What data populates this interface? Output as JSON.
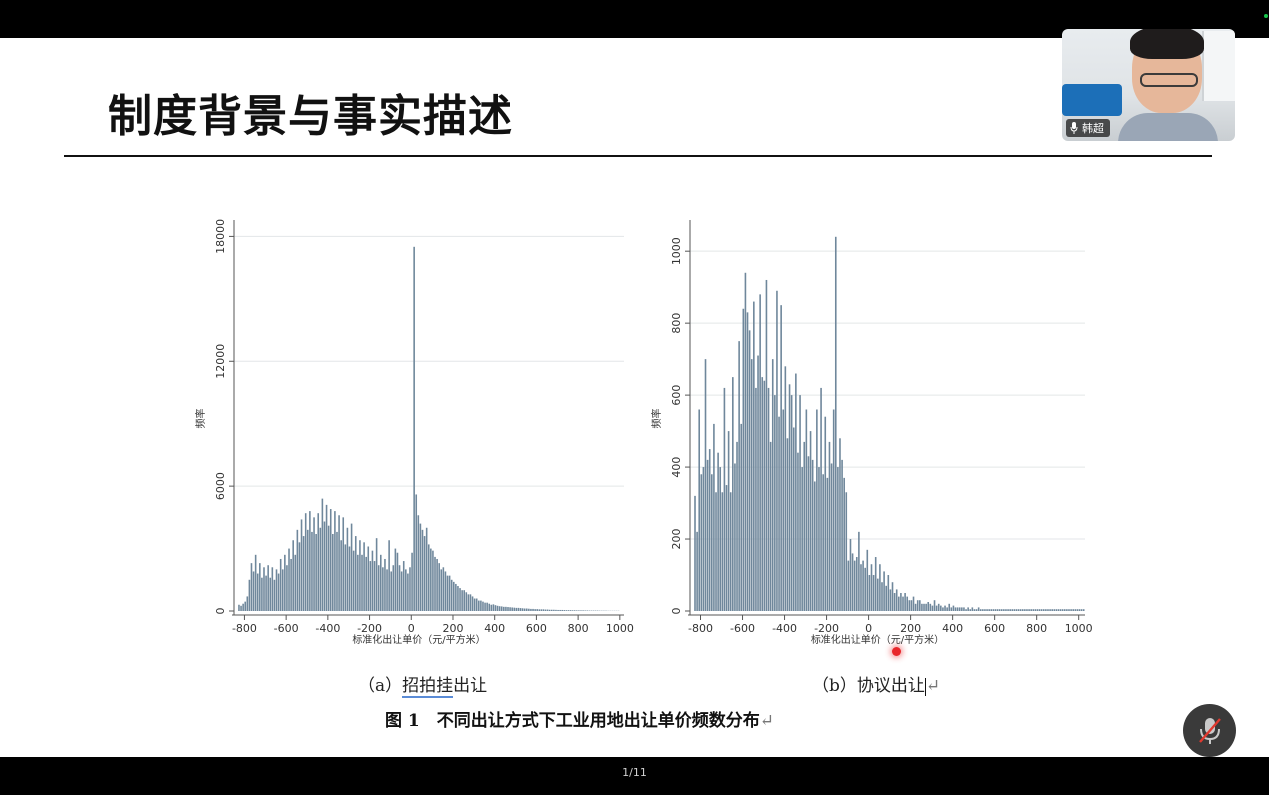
{
  "slide": {
    "title": "制度背景与事实描述",
    "caption_a": {
      "prefix": "（a）",
      "underlined": "招拍挂",
      "rest": "出让"
    },
    "caption_b": {
      "prefix": "（b）",
      "text": "协议出让"
    },
    "figure_caption": "图 1　不同出让方式下工业用地出让单价频数分布",
    "return_mark": "↵"
  },
  "video": {
    "participant_name": "韩超"
  },
  "footer": {
    "page_indicator": "1/11"
  },
  "colors": {
    "bar": "#6f879b",
    "grid": "#e3e6e8",
    "axis": "#555555",
    "accent_underline": "#5a8bd6",
    "laser": "#e8262a"
  },
  "icons": [
    "microphone-icon",
    "microphone-muted-icon"
  ],
  "chart_data": [
    {
      "type": "bar",
      "title": "",
      "xlabel": "标准化出让单价（元/平方米）",
      "ylabel": "频率",
      "xlim": [
        -850,
        1020
      ],
      "ylim": [
        0,
        18500
      ],
      "xticks": [
        -800,
        -600,
        -400,
        -200,
        0,
        200,
        400,
        600,
        800,
        1000
      ],
      "yticks": [
        0,
        6000,
        12000,
        18000
      ],
      "grid": true,
      "bin_width": 10,
      "bin_start": -830,
      "values": [
        300,
        250,
        350,
        450,
        700,
        1500,
        2300,
        1900,
        2700,
        1800,
        2300,
        1600,
        2100,
        1700,
        2200,
        1600,
        2100,
        1500,
        2000,
        1800,
        2500,
        2000,
        2700,
        2200,
        3000,
        2500,
        3400,
        2700,
        3900,
        3300,
        4400,
        3600,
        4700,
        3900,
        4800,
        3800,
        4500,
        3700,
        4700,
        4000,
        5400,
        4300,
        5100,
        4100,
        4900,
        3700,
        4800,
        3800,
        4600,
        3400,
        4500,
        3200,
        4000,
        3100,
        4200,
        2900,
        3600,
        2700,
        3400,
        2700,
        3300,
        2600,
        3100,
        2400,
        2900,
        2400,
        3500,
        2200,
        2700,
        2100,
        2500,
        2000,
        3400,
        1900,
        2200,
        3000,
        2800,
        2200,
        1900,
        2400,
        2000,
        1800,
        2100,
        2800,
        17500,
        5600,
        4600,
        4200,
        3900,
        3600,
        4000,
        3200,
        3000,
        2900,
        2600,
        2500,
        2300,
        2000,
        2100,
        1900,
        1700,
        1700,
        1500,
        1400,
        1300,
        1200,
        1100,
        1000,
        1000,
        900,
        800,
        800,
        700,
        600,
        600,
        500,
        500,
        450,
        400,
        400,
        350,
        300,
        320,
        280,
        250,
        230,
        220,
        200,
        200,
        190,
        180,
        170,
        160,
        150,
        150,
        140,
        130,
        120,
        120,
        110,
        100,
        100,
        90,
        90,
        80,
        80,
        80,
        70,
        70,
        60,
        60,
        60,
        55,
        50,
        50,
        50,
        45,
        40,
        40,
        40,
        35,
        35,
        30,
        30,
        30,
        30,
        25,
        25,
        20,
        20,
        20,
        20,
        20,
        15,
        15,
        15,
        15,
        10,
        10,
        10,
        10,
        10,
        10
      ]
    },
    {
      "type": "bar",
      "title": "",
      "xlabel": "标准化出让单价（元/平方米）",
      "ylabel": "频率",
      "xlim": [
        -850,
        1030
      ],
      "ylim": [
        0,
        1070
      ],
      "xticks": [
        -800,
        -600,
        -400,
        -200,
        0,
        200,
        400,
        600,
        800,
        1000
      ],
      "yticks": [
        0,
        200,
        400,
        600,
        800,
        1000
      ],
      "grid": true,
      "bin_width": 10,
      "bin_start": -830,
      "values": [
        320,
        220,
        560,
        380,
        400,
        700,
        420,
        450,
        380,
        520,
        330,
        440,
        400,
        330,
        620,
        350,
        500,
        330,
        650,
        410,
        470,
        750,
        520,
        840,
        940,
        830,
        780,
        700,
        860,
        620,
        710,
        880,
        650,
        640,
        920,
        620,
        470,
        700,
        600,
        890,
        540,
        850,
        560,
        680,
        480,
        630,
        600,
        510,
        660,
        440,
        600,
        400,
        470,
        560,
        430,
        500,
        420,
        360,
        560,
        400,
        620,
        380,
        540,
        370,
        470,
        410,
        560,
        1040,
        400,
        480,
        420,
        370,
        330,
        140,
        200,
        160,
        140,
        150,
        220,
        130,
        140,
        120,
        170,
        100,
        130,
        100,
        150,
        90,
        130,
        80,
        110,
        70,
        100,
        60,
        80,
        50,
        60,
        40,
        50,
        40,
        50,
        40,
        30,
        30,
        40,
        20,
        30,
        30,
        20,
        20,
        20,
        25,
        20,
        15,
        30,
        15,
        20,
        15,
        10,
        15,
        10,
        20,
        10,
        15,
        10,
        10,
        10,
        10,
        10,
        5,
        10,
        5,
        10,
        5,
        5,
        10,
        5,
        5,
        5,
        5,
        5,
        5,
        5,
        5,
        5,
        5,
        5,
        5,
        5,
        5,
        5,
        5,
        5,
        5,
        5,
        5,
        5,
        5,
        5,
        5,
        5,
        5,
        5,
        5,
        5,
        5,
        5,
        5,
        5,
        5,
        5,
        5,
        5,
        5,
        5,
        5,
        5,
        5,
        5,
        5,
        5,
        5,
        5,
        5,
        5,
        5
      ]
    }
  ]
}
